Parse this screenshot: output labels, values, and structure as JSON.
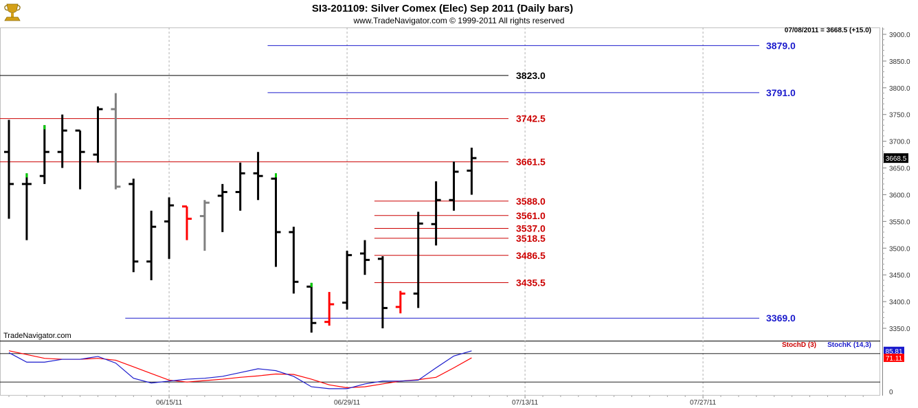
{
  "header": {
    "title": "SI3-201109:  Silver Comex (Elec) Sep 2011  (Daily bars)",
    "copyright": "www.TradeNavigator.com © 1999-2011 All rights reserved"
  },
  "info_readout": "07/08/2011 = 3668.5 (+15.0)",
  "watermark": "TradeNavigator.com",
  "logo_icon": "trophy-icon",
  "colors": {
    "up_bar": "#000000",
    "down_bar": "#ff0000",
    "neutral_bar": "#808080",
    "green_mark": "#00cc00",
    "blue_level": "#1a1acc",
    "black_level": "#000000",
    "red_level": "#cc0000",
    "stoch_d": "#cc0000",
    "stoch_k": "#1a1acc"
  },
  "chart_data": [
    {
      "type": "ohlc",
      "title": "SI3-201109:  Silver Comex (Elec) Sep 2011  (Daily bars)",
      "ylim": [
        3330,
        3920
      ],
      "y_ticks": [
        "3900.0",
        "3850.0",
        "3800.0",
        "3750.0",
        "3700.0",
        "3650.0",
        "3600.0",
        "3550.0",
        "3500.0",
        "3450.0",
        "3400.0",
        "3350.0"
      ],
      "y_tick_values": [
        3900,
        3850,
        3800,
        3750,
        3700,
        3650,
        3600,
        3550,
        3500,
        3450,
        3400,
        3350
      ],
      "x_labels": [
        "06/15/11",
        "06/29/11",
        "07/13/11",
        "07/27/11"
      ],
      "x_label_index": [
        9,
        19,
        29,
        39
      ],
      "current_price_tag": "3668.5",
      "current_price": 3668.5,
      "bars": [
        {
          "o": 3680,
          "h": 3740,
          "l": 3555,
          "c": 3620,
          "color": "black"
        },
        {
          "o": 3620,
          "h": 3640,
          "l": 3515,
          "c": 3620,
          "color": "black",
          "mark": "green"
        },
        {
          "o": 3635,
          "h": 3730,
          "l": 3620,
          "c": 3680,
          "color": "black",
          "mark": "green"
        },
        {
          "o": 3680,
          "h": 3750,
          "l": 3650,
          "c": 3720,
          "color": "black"
        },
        {
          "o": 3720,
          "h": 3720,
          "l": 3610,
          "c": 3680,
          "color": "black"
        },
        {
          "o": 3675,
          "h": 3765,
          "l": 3660,
          "c": 3760,
          "color": "black"
        },
        {
          "o": 3760,
          "h": 3790,
          "l": 3610,
          "c": 3615,
          "color": "gray"
        },
        {
          "o": 3620,
          "h": 3630,
          "l": 3455,
          "c": 3475,
          "color": "black"
        },
        {
          "o": 3475,
          "h": 3570,
          "l": 3440,
          "c": 3540,
          "color": "black"
        },
        {
          "o": 3550,
          "h": 3595,
          "l": 3480,
          "c": 3580,
          "color": "black"
        },
        {
          "o": 3578,
          "h": 3578,
          "l": 3515,
          "c": 3555,
          "color": "red"
        },
        {
          "o": 3560,
          "h": 3590,
          "l": 3495,
          "c": 3585,
          "color": "gray"
        },
        {
          "o": 3598,
          "h": 3620,
          "l": 3530,
          "c": 3605,
          "color": "black"
        },
        {
          "o": 3605,
          "h": 3660,
          "l": 3570,
          "c": 3640,
          "color": "black"
        },
        {
          "o": 3640,
          "h": 3680,
          "l": 3590,
          "c": 3635,
          "color": "black"
        },
        {
          "o": 3630,
          "h": 3640,
          "l": 3465,
          "c": 3530,
          "color": "black",
          "mark": "green"
        },
        {
          "o": 3530,
          "h": 3540,
          "l": 3415,
          "c": 3437,
          "color": "black"
        },
        {
          "o": 3428,
          "h": 3435,
          "l": 3342,
          "c": 3360,
          "color": "black",
          "mark": "green"
        },
        {
          "o": 3362,
          "h": 3418,
          "l": 3355,
          "c": 3395,
          "color": "red"
        },
        {
          "o": 3398,
          "h": 3495,
          "l": 3385,
          "c": 3487,
          "color": "black"
        },
        {
          "o": 3490,
          "h": 3515,
          "l": 3450,
          "c": 3478,
          "color": "black"
        },
        {
          "o": 3480,
          "h": 3485,
          "l": 3350,
          "c": 3388,
          "color": "black"
        },
        {
          "o": 3390,
          "h": 3420,
          "l": 3378,
          "c": 3415,
          "color": "red"
        },
        {
          "o": 3415,
          "h": 3568,
          "l": 3388,
          "c": 3546,
          "color": "black"
        },
        {
          "o": 3545,
          "h": 3625,
          "l": 3505,
          "c": 3590,
          "color": "black"
        },
        {
          "o": 3590,
          "h": 3662,
          "l": 3570,
          "c": 3643,
          "color": "black"
        },
        {
          "o": 3645,
          "h": 3688,
          "l": 3600,
          "c": 3668.5,
          "color": "black"
        }
      ],
      "levels": [
        {
          "value": "3879.0",
          "price": 3879,
          "color": "blue",
          "start_index": 15
        },
        {
          "value": "3823.0",
          "price": 3823,
          "color": "black",
          "start_index": -1
        },
        {
          "value": "3791.0",
          "price": 3791,
          "color": "blue",
          "start_index": 15
        },
        {
          "value": "3742.5",
          "price": 3742.5,
          "color": "red",
          "start_index": -1
        },
        {
          "value": "3661.5",
          "price": 3661.5,
          "color": "red",
          "start_index": -1
        },
        {
          "value": "3588.0",
          "price": 3588,
          "color": "red",
          "start_index": 21
        },
        {
          "value": "3561.0",
          "price": 3561,
          "color": "red",
          "start_index": 21
        },
        {
          "value": "3537.0",
          "price": 3537,
          "color": "red",
          "start_index": 21
        },
        {
          "value": "3518.5",
          "price": 3518.5,
          "color": "red",
          "start_index": 21
        },
        {
          "value": "3486.5",
          "price": 3486.5,
          "color": "red",
          "start_index": 21
        },
        {
          "value": "3435.5",
          "price": 3435.5,
          "color": "red",
          "start_index": 21
        },
        {
          "value": "3369.0",
          "price": 3369,
          "color": "blue",
          "start_index": 7
        }
      ]
    },
    {
      "type": "line",
      "legend": [
        "StochD (3)",
        "StochK (14,3)"
      ],
      "ylim": [
        0,
        100
      ],
      "y_ticks": [
        "0"
      ],
      "y_tick_values": [
        0
      ],
      "reference_lines": [
        80,
        20
      ],
      "tags": [
        {
          "value": "85.81",
          "series": "StochK (14,3)",
          "level": 85.81
        },
        {
          "value": "71.11",
          "series": "StochD (3)",
          "level": 71.11
        }
      ],
      "series": [
        {
          "name": "StochD (3)",
          "color": "red",
          "values": [
            86,
            78,
            70,
            68,
            68,
            70,
            66,
            52,
            38,
            24,
            20,
            23,
            26,
            30,
            33,
            37,
            36,
            26,
            14,
            8,
            10,
            16,
            22,
            25,
            30,
            50,
            71.11
          ]
        },
        {
          "name": "StochK (14,3)",
          "color": "blue",
          "values": [
            82,
            62,
            62,
            68,
            68,
            74,
            60,
            28,
            18,
            22,
            26,
            28,
            32,
            40,
            48,
            44,
            32,
            10,
            6,
            6,
            16,
            22,
            22,
            24,
            50,
            75,
            85.81
          ]
        }
      ]
    }
  ]
}
